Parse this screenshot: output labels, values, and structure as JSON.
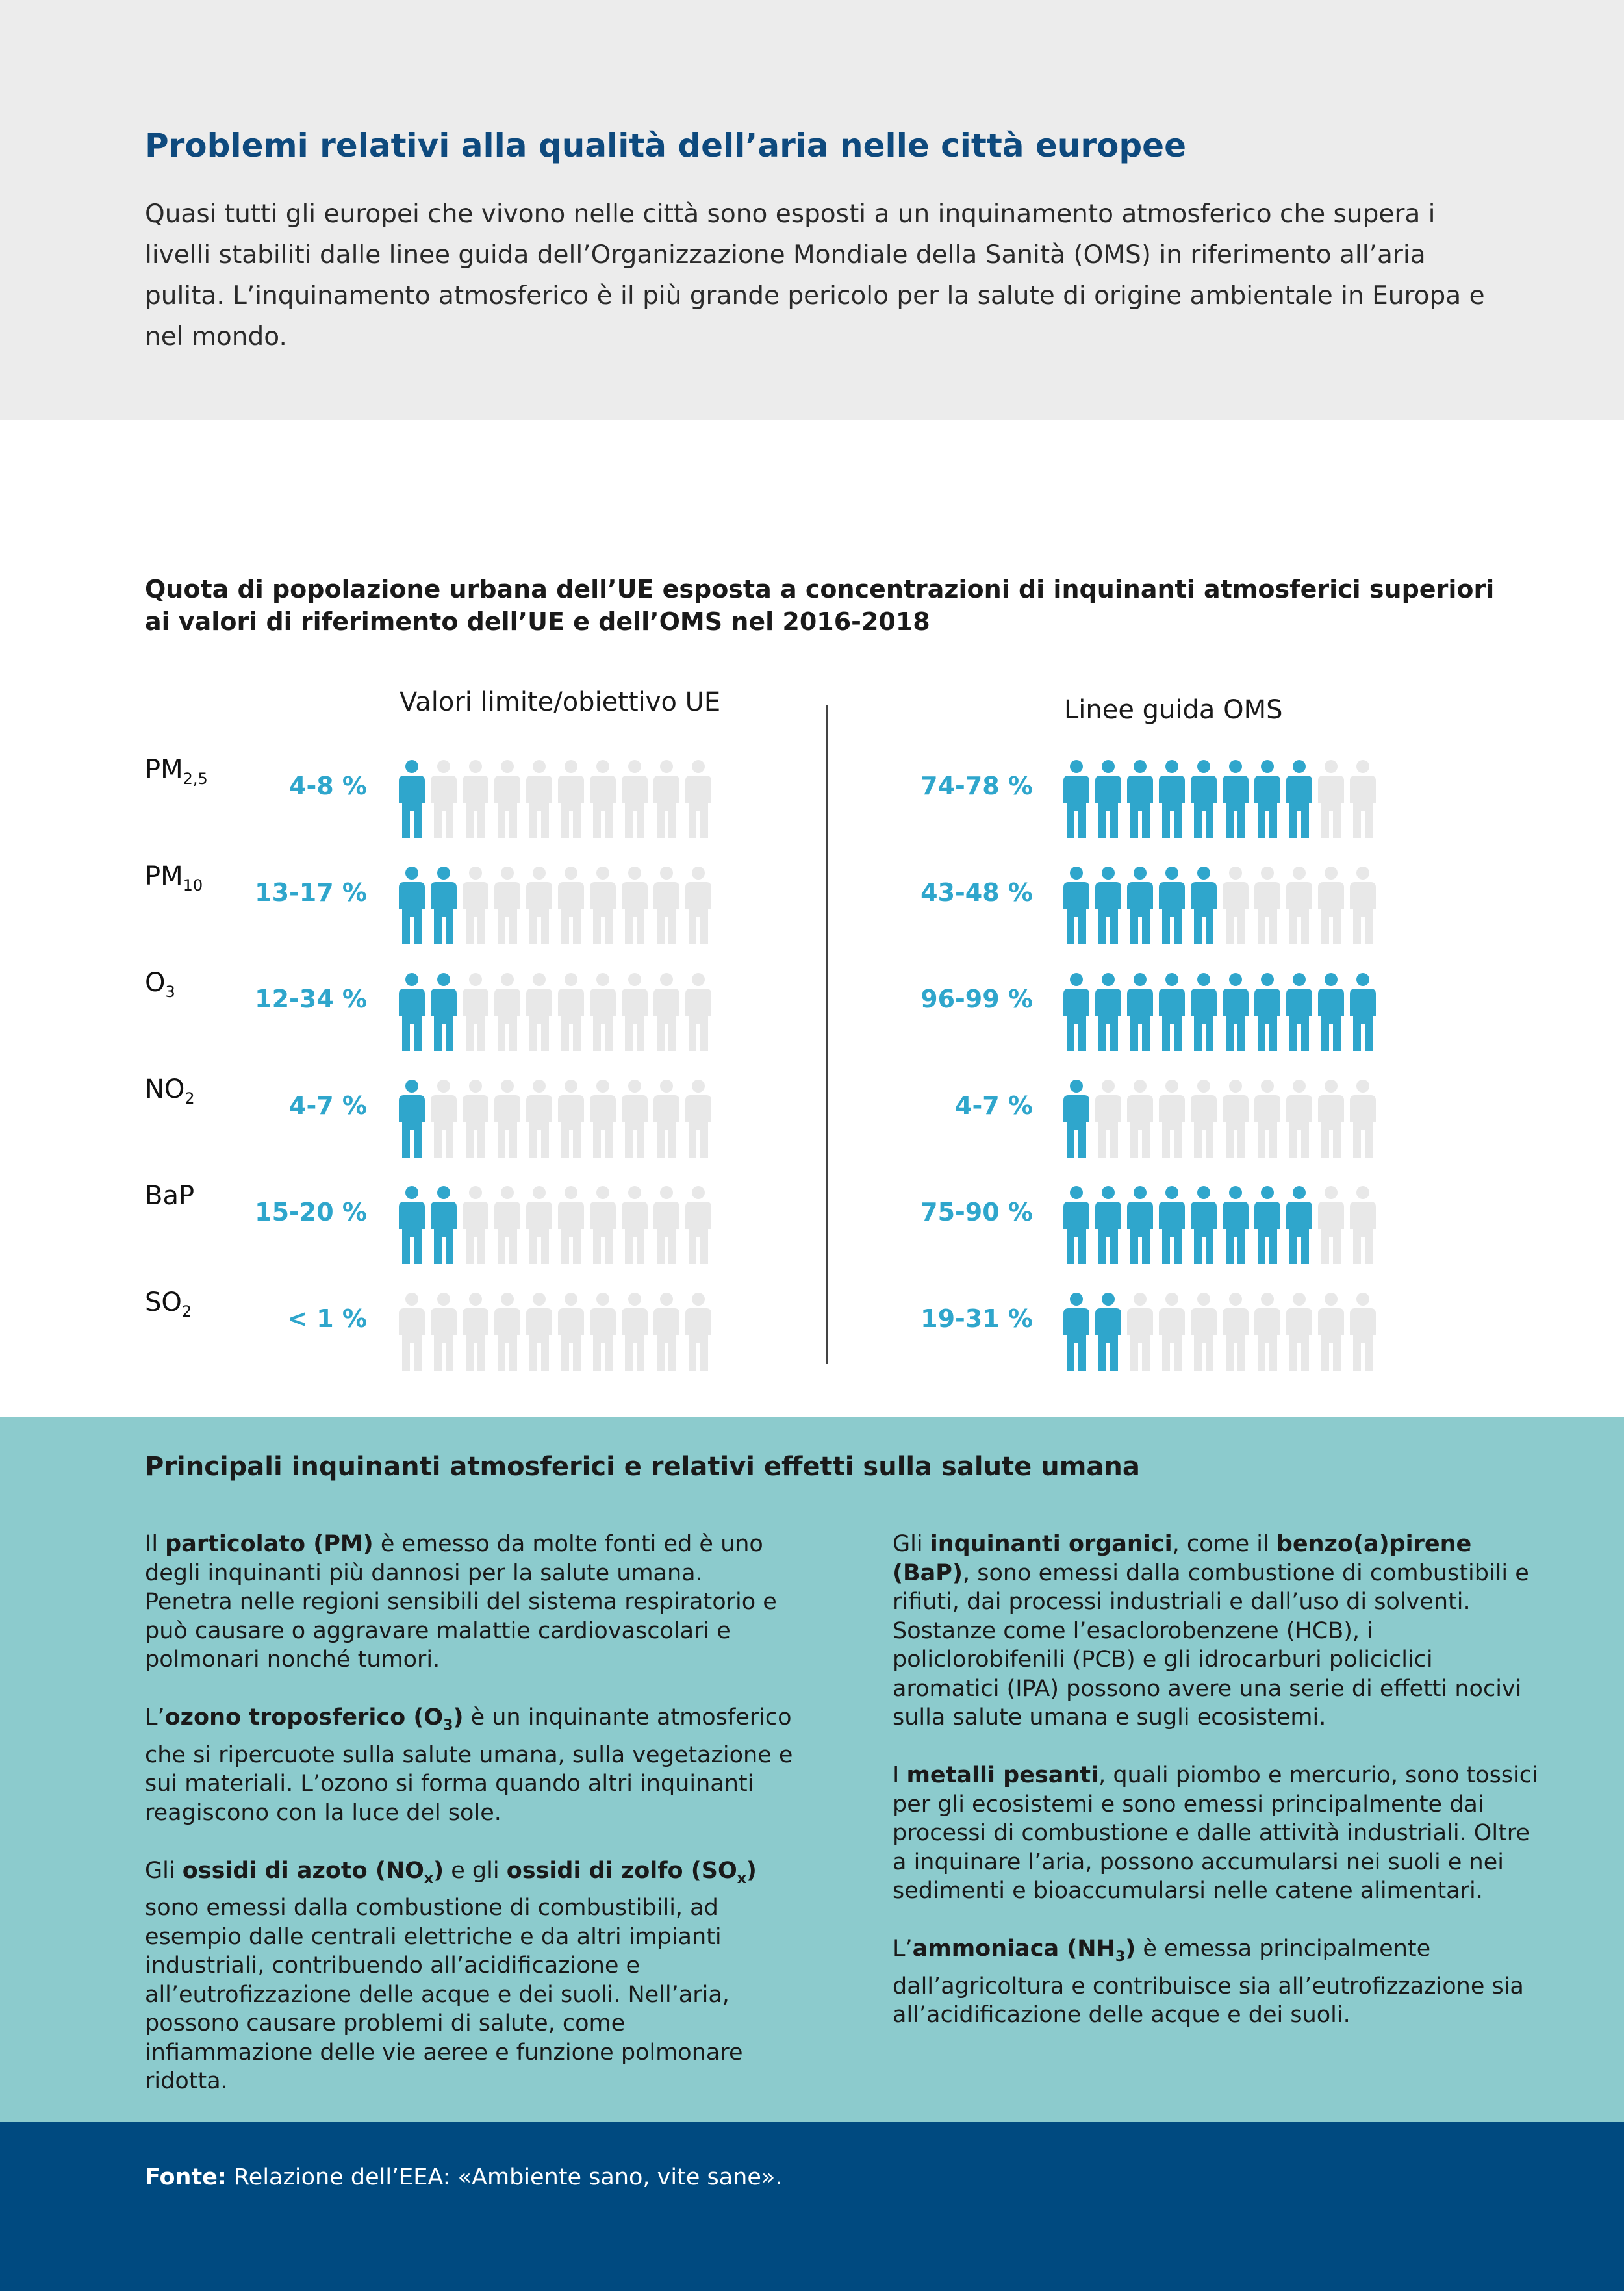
{
  "header": {
    "title": "Problemi relativi alla qualità dell’aria nelle città europee",
    "intro": "Quasi tutti gli europei che vivono nelle città sono esposti a un inquinamento atmosferico che supera i livelli stabiliti dalle linee guida dell’Organizzazione Mondiale della Sanità (OMS) in riferimento all’aria pulita. L’inquinamento atmosferico è il più grande pericolo per la salute di origine ambientale in Europa e nel mondo."
  },
  "chart_data": {
    "type": "table",
    "title": "Quota di popolazione urbana dell’UE esposta a concentrazioni di inquinanti atmosferici superiori ai valori di riferimento dell’UE e dell’OMS nel 2016-2018",
    "columns": [
      "Valori limite/obiettivo UE",
      "Linee guida OMS"
    ],
    "icons_total": 10,
    "colors": {
      "filled": "#2fa6cc",
      "empty": "#e8e8e8"
    },
    "rows": [
      {
        "base": "PM",
        "sub": "2,5",
        "eu": "4-8 %",
        "eu_icons": 1,
        "who": "74-78 %",
        "who_icons": 8
      },
      {
        "base": "PM",
        "sub": "10",
        "eu": "13-17 %",
        "eu_icons": 2,
        "who": "43-48 %",
        "who_icons": 5
      },
      {
        "base": "O",
        "sub": "3",
        "eu": "12-34 %",
        "eu_icons": 2,
        "who": "96-99 %",
        "who_icons": 10
      },
      {
        "base": "NO",
        "sub": "2",
        "eu": "4-7 %",
        "eu_icons": 1,
        "who": "4-7 %",
        "who_icons": 1
      },
      {
        "base": "BaP",
        "sub": "",
        "eu": "15-20 %",
        "eu_icons": 2,
        "who": "75-90 %",
        "who_icons": 8
      },
      {
        "base": "SO",
        "sub": "2",
        "eu": "< 1 %",
        "eu_icons": 0,
        "who": "19-31 %",
        "who_icons": 2
      }
    ]
  },
  "effects": {
    "title": "Principali inquinanti atmosferici e relativi effetti sulla salute umana",
    "left": [
      [
        {
          "t": "Il "
        },
        {
          "t": "particolato (PM)",
          "b": true
        },
        {
          "t": " è emesso da molte fonti ed è uno degli inquinanti più dannosi per la salute umana. Penetra nelle regioni sensibili del sistema respiratorio e può causare o aggravare malattie cardiovascolari e polmonari nonché tumori."
        }
      ],
      [
        {
          "t": "L’"
        },
        {
          "t": "ozono troposferico (O",
          "b": true
        },
        {
          "t": "3",
          "b": true,
          "sub": true
        },
        {
          "t": ")",
          "b": true
        },
        {
          "t": " è un inquinante atmosferico che si ripercuote sulla salute umana, sulla vegetazione e sui materiali. L’ozono si forma quando altri inquinanti reagiscono con la luce del sole."
        }
      ],
      [
        {
          "t": "Gli "
        },
        {
          "t": "ossidi di azoto (NO",
          "b": true
        },
        {
          "t": "x",
          "b": true,
          "sub": true
        },
        {
          "t": ")",
          "b": true
        },
        {
          "t": " e gli "
        },
        {
          "t": "ossidi di zolfo (SO",
          "b": true
        },
        {
          "t": "x",
          "b": true,
          "sub": true
        },
        {
          "t": ")",
          "b": true
        },
        {
          "t": " sono emessi dalla combustione di combustibili, ad esempio dalle centrali elettriche e da altri impianti industriali, contribuendo all’acidificazione e all’eutrofizzazione delle acque e dei suoli. Nell’aria, possono causare problemi di salute, come infiammazione delle vie aeree e funzione polmonare ridotta."
        }
      ]
    ],
    "right": [
      [
        {
          "t": "Gli "
        },
        {
          "t": "inquinanti organici",
          "b": true
        },
        {
          "t": ", come il "
        },
        {
          "t": "benzo(a)pirene (BaP)",
          "b": true
        },
        {
          "t": ", sono emessi dalla combustione di combustibili e rifiuti, dai processi industriali e dall’uso di solventi. Sostanze come l’esaclorobenzene (HCB), i policlorobifenili (PCB) e gli idrocarburi policiclici aromatici (IPA) possono avere una serie di effetti nocivi sulla salute umana e sugli ecosistemi."
        }
      ],
      [
        {
          "t": "I "
        },
        {
          "t": "metalli pesanti",
          "b": true
        },
        {
          "t": ", quali piombo e mercurio, sono tossici per gli ecosistemi e sono emessi principalmente dai processi di combustione e dalle attività industriali. Oltre a inquinare l’aria, possono accumularsi nei suoli e nei sedimenti e bioaccumularsi nelle catene alimentari."
        }
      ],
      [
        {
          "t": "L’"
        },
        {
          "t": "ammoniaca (NH",
          "b": true
        },
        {
          "t": "3",
          "b": true,
          "sub": true
        },
        {
          "t": ")",
          "b": true
        },
        {
          "t": " è emessa principalmente dall’agricoltura e contribuisce sia all’eutrofizzazione sia all’acidificazione delle acque e dei suoli."
        }
      ]
    ]
  },
  "footer": {
    "source_label": "Fonte:",
    "source_text": " Relazione dell’EEA: «Ambiente sano, vite sane»."
  }
}
